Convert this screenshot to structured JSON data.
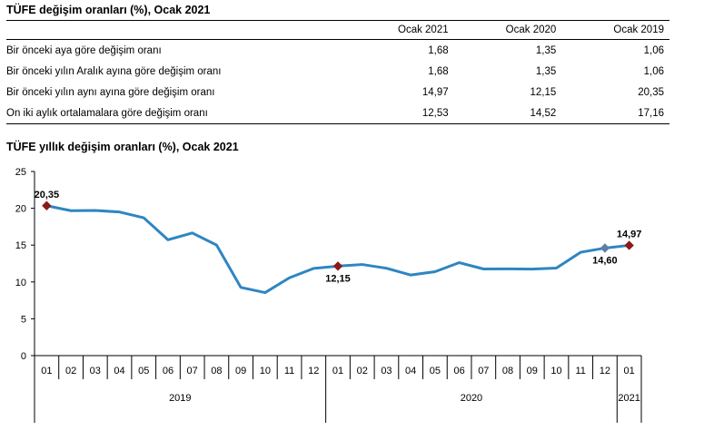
{
  "table": {
    "title": "TÜFE değişim oranları (%), Ocak 2021",
    "headers": [
      "",
      "Ocak 2021",
      "Ocak 2020",
      "Ocak 2019"
    ],
    "rows": [
      {
        "label": "Bir önceki aya göre değişim oranı",
        "values": [
          "1,68",
          "1,35",
          "1,06"
        ]
      },
      {
        "label": "Bir önceki yılın Aralık ayına göre değişim oranı",
        "values": [
          "1,68",
          "1,35",
          "1,06"
        ]
      },
      {
        "label": "Bir önceki yılın aynı ayına göre değişim oranı",
        "values": [
          "14,97",
          "12,15",
          "20,35"
        ]
      },
      {
        "label": "On iki aylık ortalamalara göre değişim oranı",
        "values": [
          "12,53",
          "14,52",
          "17,16"
        ]
      }
    ]
  },
  "chart_data": {
    "type": "line",
    "title": "TÜFE yıllık değişim oranları (%), Ocak 2021",
    "ylim": [
      0,
      25
    ],
    "yticks": [
      0,
      5,
      10,
      15,
      20,
      25
    ],
    "grid": false,
    "categories": [
      "01",
      "02",
      "03",
      "04",
      "05",
      "06",
      "07",
      "08",
      "09",
      "10",
      "11",
      "12",
      "01",
      "02",
      "03",
      "04",
      "05",
      "06",
      "07",
      "08",
      "09",
      "10",
      "11",
      "12",
      "01"
    ],
    "groups": [
      {
        "label": "2019",
        "count": 12
      },
      {
        "label": "2020",
        "count": 12
      },
      {
        "label": "2021",
        "count": 1
      }
    ],
    "series": [
      {
        "color": "#2e86c1",
        "values": [
          20.35,
          19.67,
          19.71,
          19.5,
          18.71,
          15.72,
          16.65,
          15.01,
          9.26,
          8.55,
          10.56,
          11.84,
          12.15,
          12.37,
          11.86,
          10.94,
          11.39,
          12.62,
          11.76,
          11.77,
          11.75,
          11.89,
          14.03,
          14.6,
          14.97
        ]
      }
    ],
    "annotations": [
      {
        "index": 0,
        "label": "20,35",
        "marker": "diamond",
        "color": "#8b1a1a"
      },
      {
        "index": 12,
        "label": "12,15",
        "marker": "diamond",
        "color": "#8b1a1a"
      },
      {
        "index": 23,
        "label": "14,60",
        "marker": "diamond",
        "color": "#5b7fa6"
      },
      {
        "index": 24,
        "label": "14,97",
        "marker": "diamond",
        "color": "#8b1a1a"
      }
    ]
  }
}
